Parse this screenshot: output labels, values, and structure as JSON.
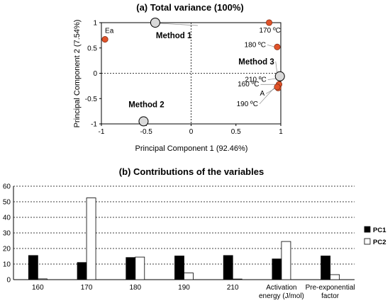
{
  "chart_data": [
    {
      "type": "scatter",
      "title": "(a) Total variance (100%)",
      "xlabel": "Principal Component 1 (92.46%)",
      "ylabel": "Principal Component 2 (7.54%)",
      "xlim": [
        -1,
        1
      ],
      "ylim": [
        -1,
        1
      ],
      "xticks": [
        "-1",
        "-0.5",
        "0",
        "0.5",
        "1"
      ],
      "yticks": [
        "-1",
        "-0.5",
        "0",
        "0.5",
        "1"
      ],
      "points": [
        {
          "label": "Ea",
          "x": -0.96,
          "y": 0.67
        },
        {
          "label": "170 ºC",
          "x": 0.87,
          "y": 1.0
        },
        {
          "label": "180 ºC",
          "x": 0.96,
          "y": 0.52
        },
        {
          "label": "210 ºC",
          "x": 0.99,
          "y": -0.1
        },
        {
          "label": "160 ºC",
          "x": 0.98,
          "y": -0.22
        },
        {
          "label": "A",
          "x": 0.97,
          "y": -0.29
        },
        {
          "label": "190 ºC",
          "x": 0.96,
          "y": -0.27
        }
      ],
      "methods": [
        {
          "label": "Method 1",
          "x": -0.4,
          "y": 1.0
        },
        {
          "label": "Method 2",
          "x": -0.53,
          "y": -0.95
        },
        {
          "label": "Method 3",
          "x": 0.99,
          "y": -0.06
        }
      ],
      "point_color": "#e0532a",
      "method_color": "#d9d9d9"
    },
    {
      "type": "bar",
      "title": "(b) Contributions of the variables",
      "categories": [
        "160",
        "170",
        "180",
        "190",
        "210",
        "Activation energy (J/mol)",
        "Pre-exponential factor"
      ],
      "category_lines": [
        [
          "160"
        ],
        [
          "170"
        ],
        [
          "180"
        ],
        [
          "190"
        ],
        [
          "210"
        ],
        [
          "Activation",
          "energy (J/mol)"
        ],
        [
          "Pre-exponential",
          "factor"
        ]
      ],
      "series": [
        {
          "name": "PC1",
          "values": [
            15.5,
            11,
            14.2,
            15.2,
            15.5,
            13.3,
            15.2
          ],
          "color": "#000000"
        },
        {
          "name": "PC2",
          "values": [
            0.5,
            52.5,
            14.5,
            4.3,
            0.4,
            24.5,
            3.2
          ],
          "color": "#ffffff"
        }
      ],
      "ylim": [
        0,
        60
      ],
      "yticks": [
        "0",
        "10",
        "20",
        "30",
        "40",
        "50",
        "60"
      ],
      "legend": "right"
    }
  ]
}
